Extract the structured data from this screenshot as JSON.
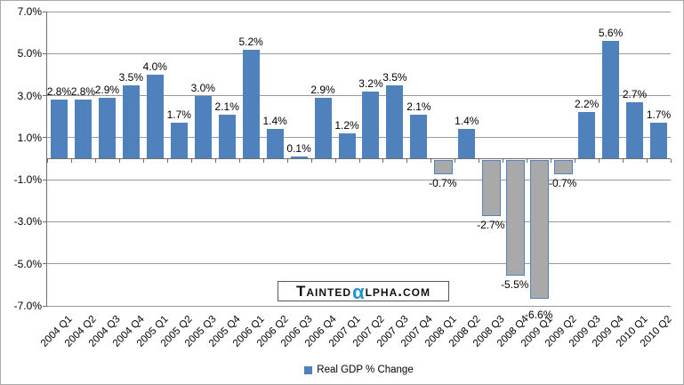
{
  "chart_data": {
    "type": "bar",
    "title": "",
    "series_name": "Real GDP % Change",
    "categories": [
      "2004 Q1",
      "2004 Q2",
      "2004 Q3",
      "2004 Q4",
      "2005 Q1",
      "2005 Q2",
      "2005 Q3",
      "2005 Q4",
      "2006 Q1",
      "2006 Q2",
      "2006 Q3",
      "2006 Q4",
      "2007 Q1",
      "2007 Q2",
      "2007 Q3",
      "2007 Q4",
      "2008 Q1",
      "2008 Q2",
      "2008 Q3",
      "2008 Q4",
      "2009 Q1",
      "2009 Q2",
      "2009 Q3",
      "2009 Q4",
      "2010 Q1",
      "2010 Q2"
    ],
    "values": [
      2.8,
      2.8,
      2.9,
      3.5,
      4.0,
      1.7,
      3.0,
      2.1,
      5.2,
      1.4,
      0.1,
      2.9,
      1.2,
      3.2,
      3.5,
      2.1,
      -0.7,
      1.4,
      -2.7,
      -5.5,
      -6.6,
      -0.7,
      2.2,
      5.6,
      2.7,
      1.7
    ],
    "data_labels": [
      "2.8%",
      "2.8%",
      "2.9%",
      "3.5%",
      "4.0%",
      "1.7%",
      "3.0%",
      "2.1%",
      "5.2%",
      "1.4%",
      "0.1%",
      "2.9%",
      "1.2%",
      "3.2%",
      "3.5%",
      "2.1%",
      "-0.7%",
      "1.4%",
      "-2.7%",
      "-5.5%",
      "-6.6%",
      "-0.7%",
      "2.2%",
      "5.6%",
      "2.7%",
      "1.7%"
    ],
    "xlabel": "",
    "ylabel": "",
    "ylim": [
      -7,
      7
    ],
    "ytick_values": [
      7,
      5,
      3,
      1,
      -1,
      -3,
      -5,
      -7
    ],
    "ytick_labels": [
      "7.0%",
      "5.0%",
      "3.0%",
      "1.0%",
      "-1.0%",
      "-3.0%",
      "-5.0%",
      "-7.0%"
    ],
    "grid": true,
    "legend_position": "bottom",
    "colors": {
      "positive_bar": "#4f81bd",
      "negative_bar_fill": "#a9a9a9",
      "negative_bar_border": "#4f81bd",
      "gridline": "#9a9a9a",
      "axis": "#6e6e6e"
    }
  },
  "watermark": {
    "part1": "Tainted",
    "alpha": "α",
    "part2": "lpha.com",
    "alpha_color": "#2095d5"
  }
}
